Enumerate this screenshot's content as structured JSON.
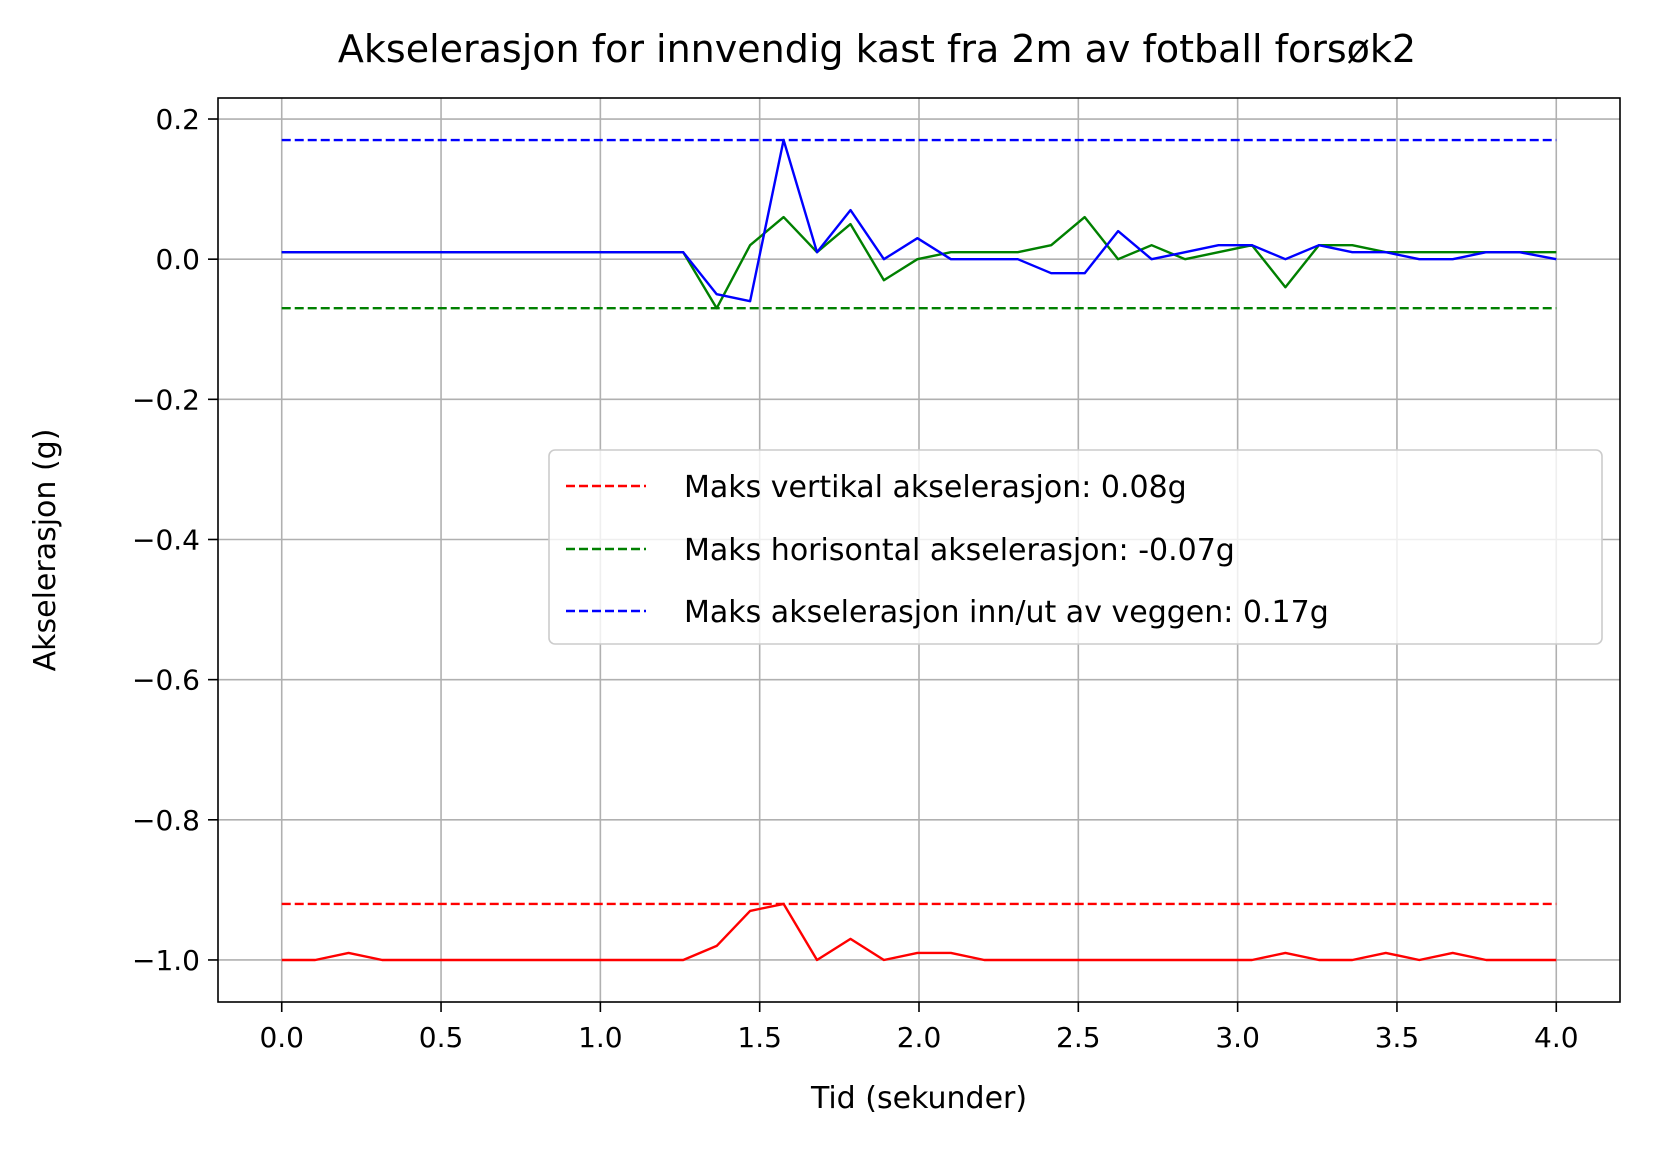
{
  "chart_data": {
    "type": "line",
    "title": "Akselerasjon for innvendig kast fra 2m av fotball forsøk2",
    "xlabel": "Tid (sekunder)",
    "ylabel": "Akselerasjon (g)",
    "xlim": [
      -0.2,
      4.2
    ],
    "ylim": [
      -1.06,
      0.23
    ],
    "xticks": [
      0.0,
      0.5,
      1.0,
      1.5,
      2.0,
      2.5,
      3.0,
      3.5,
      4.0
    ],
    "xtick_labels": [
      "0.0",
      "0.5",
      "1.0",
      "1.5",
      "2.0",
      "2.5",
      "3.0",
      "3.5",
      "4.0"
    ],
    "yticks": [
      0.2,
      0.0,
      -0.2,
      -0.4,
      -0.6,
      -0.8,
      -1.0
    ],
    "ytick_labels": [
      "0.2",
      "0.0",
      "−0.2",
      "−0.4",
      "−0.6",
      "−0.8",
      "−1.0"
    ],
    "grid": true,
    "legend_position": "center-right",
    "x": [
      0.0,
      0.105,
      0.21,
      0.315,
      0.42,
      0.525,
      0.63,
      0.735,
      0.84,
      0.945,
      1.05,
      1.155,
      1.26,
      1.365,
      1.47,
      1.575,
      1.68,
      1.785,
      1.89,
      1.995,
      2.1,
      2.205,
      2.31,
      2.415,
      2.52,
      2.625,
      2.73,
      2.835,
      2.94,
      3.045,
      3.15,
      3.255,
      3.36,
      3.465,
      3.57,
      3.675,
      3.78,
      3.885,
      4.0
    ],
    "series": [
      {
        "color": "#ff0000",
        "style": "solid",
        "values": [
          -1.0,
          -1.0,
          -0.99,
          -1.0,
          -1.0,
          -1.0,
          -1.0,
          -1.0,
          -1.0,
          -1.0,
          -1.0,
          -1.0,
          -1.0,
          -0.98,
          -0.93,
          -0.92,
          -1.0,
          -0.97,
          -1.0,
          -0.99,
          -0.99,
          -1.0,
          -1.0,
          -1.0,
          -1.0,
          -1.0,
          -1.0,
          -1.0,
          -1.0,
          -1.0,
          -0.99,
          -1.0,
          -1.0,
          -0.99,
          -1.0,
          -0.99,
          -1.0,
          -1.0,
          -1.0
        ]
      },
      {
        "color": "#008000",
        "style": "solid",
        "values": [
          0.01,
          0.01,
          0.01,
          0.01,
          0.01,
          0.01,
          0.01,
          0.01,
          0.01,
          0.01,
          0.01,
          0.01,
          0.01,
          -0.07,
          0.02,
          0.06,
          0.01,
          0.05,
          -0.03,
          0.0,
          0.01,
          0.01,
          0.01,
          0.02,
          0.06,
          0.0,
          0.02,
          0.0,
          0.01,
          0.02,
          -0.04,
          0.02,
          0.02,
          0.01,
          0.01,
          0.01,
          0.01,
          0.01,
          0.01
        ]
      },
      {
        "color": "#0000ff",
        "style": "solid",
        "values": [
          0.01,
          0.01,
          0.01,
          0.01,
          0.01,
          0.01,
          0.01,
          0.01,
          0.01,
          0.01,
          0.01,
          0.01,
          0.01,
          -0.05,
          -0.06,
          0.17,
          0.01,
          0.07,
          0.0,
          0.03,
          0.0,
          0.0,
          0.0,
          -0.02,
          -0.02,
          0.04,
          0.0,
          0.01,
          0.02,
          0.02,
          0.0,
          0.02,
          0.01,
          0.01,
          0.0,
          0.0,
          0.01,
          0.01,
          0.0
        ]
      }
    ],
    "reference_lines": [
      {
        "name": "Maks vertikal akselerasjon: 0.08g",
        "y": -0.92,
        "x_range": [
          0.0,
          4.0
        ],
        "color": "#ff0000",
        "style": "dashed"
      },
      {
        "name": "Maks horisontal akselerasjon: -0.07g",
        "y": -0.07,
        "x_range": [
          0.0,
          4.0
        ],
        "color": "#008000",
        "style": "dashed"
      },
      {
        "name": "Maks akselerasjon inn/ut av veggen: 0.17g",
        "y": 0.17,
        "x_range": [
          0.0,
          4.0
        ],
        "color": "#0000ff",
        "style": "dashed"
      }
    ]
  }
}
